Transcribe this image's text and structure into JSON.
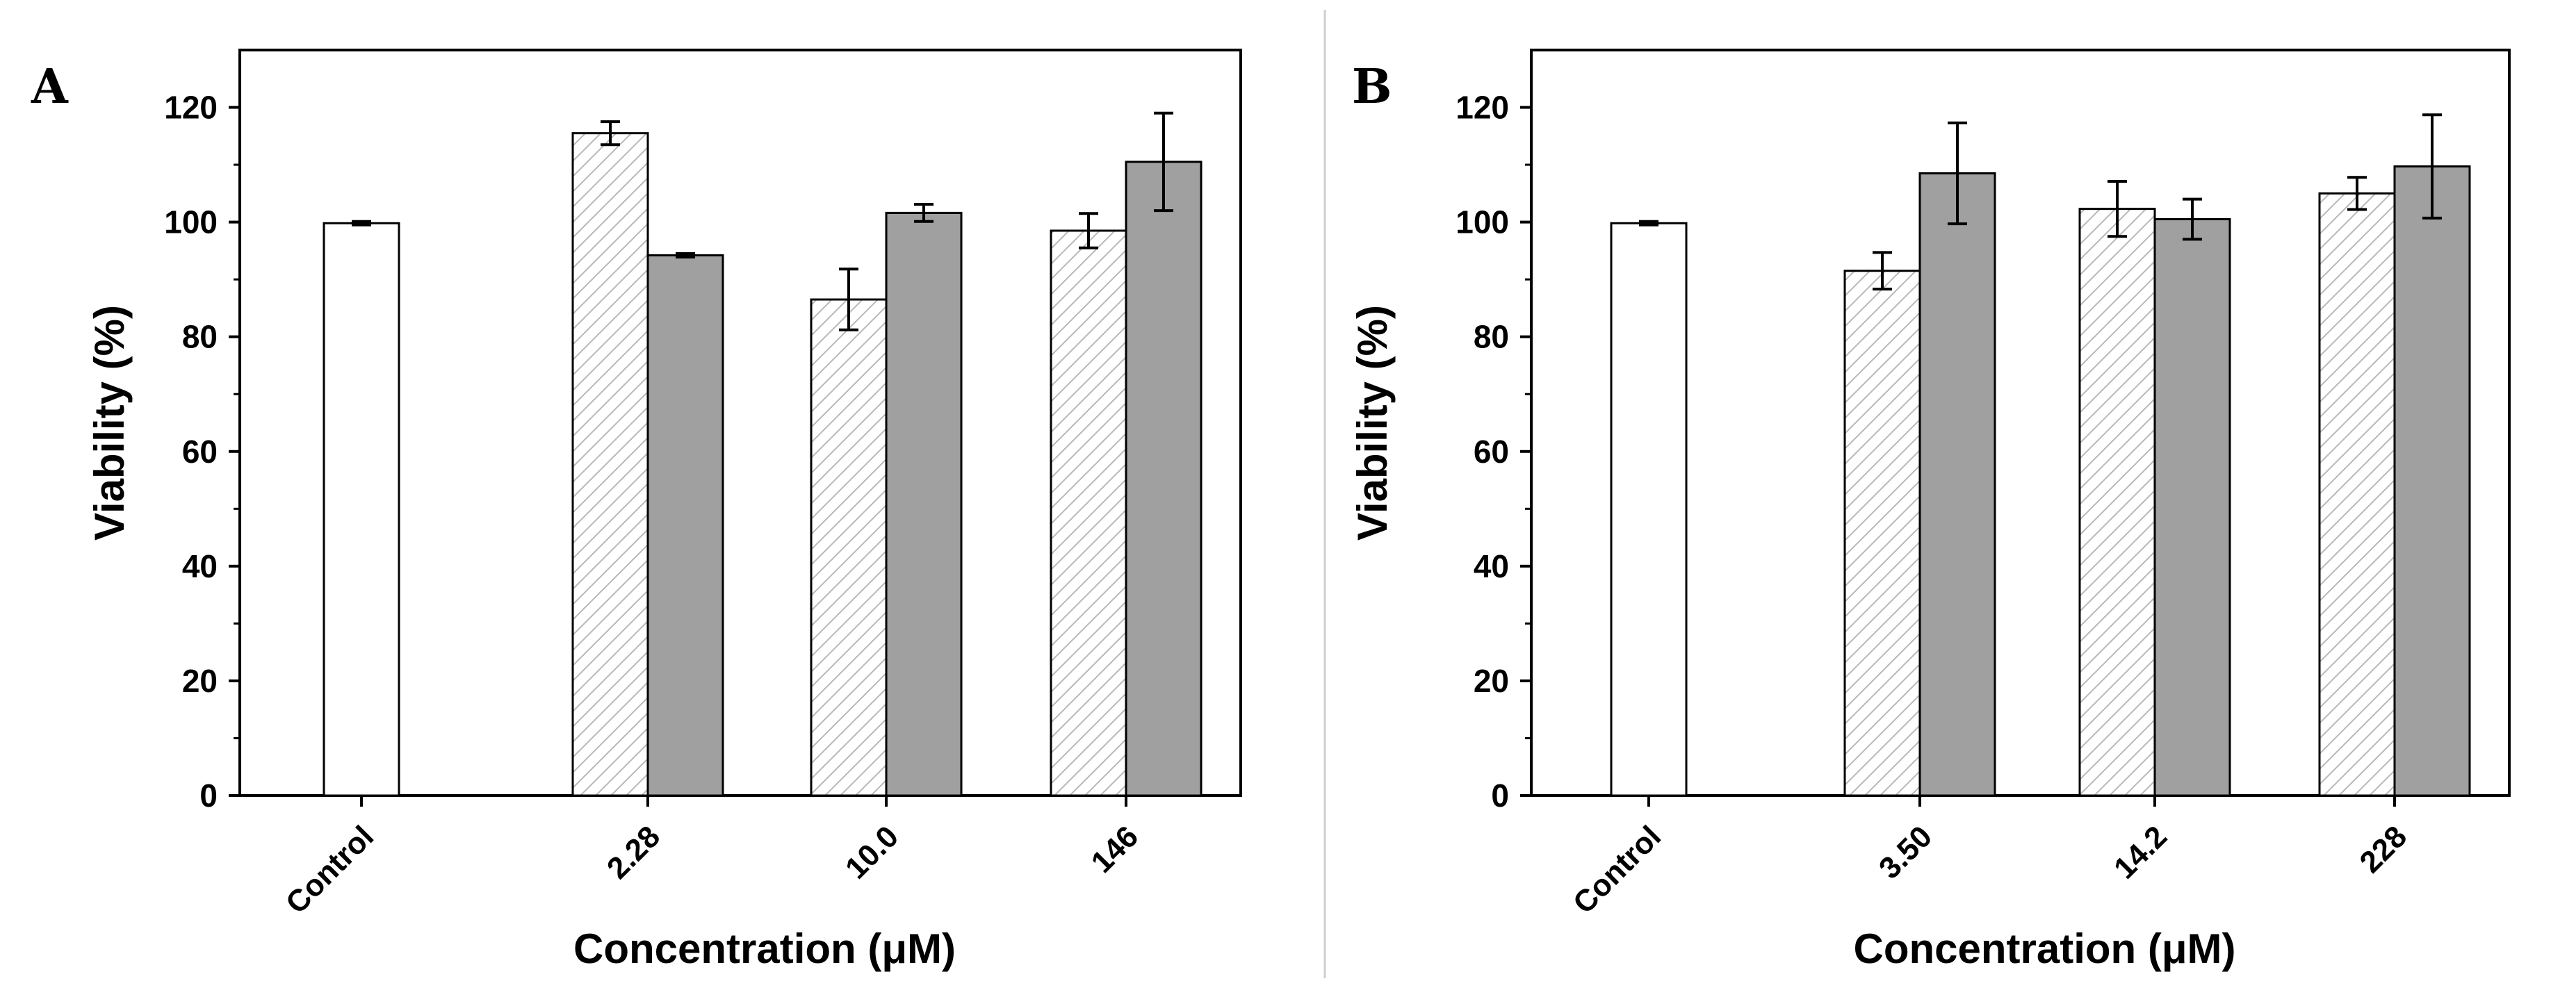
{
  "chart_data": [
    {
      "type": "bar",
      "panel": "A",
      "title": "",
      "xlabel": "Concentration (μM)",
      "ylabel": "Viability (%)",
      "ylim": [
        0,
        130
      ],
      "yticks": [
        0,
        20,
        40,
        60,
        80,
        100,
        120
      ],
      "grid": false,
      "categories": [
        "Control",
        "2.28",
        "10.0",
        "146"
      ],
      "control": {
        "value": 99.8,
        "error": 0.3
      },
      "series": [
        {
          "name": "hatched",
          "fill": "hatched",
          "values": [
            null,
            115.5,
            86.5,
            98.5
          ],
          "errors": [
            null,
            2.0,
            5.3,
            3.0
          ]
        },
        {
          "name": "gray",
          "fill": "#a0a0a0",
          "values": [
            null,
            94.2,
            101.6,
            110.5
          ],
          "errors": [
            null,
            0.3,
            1.5,
            8.5
          ]
        }
      ]
    },
    {
      "type": "bar",
      "panel": "B",
      "title": "",
      "xlabel": "Concentration (μM)",
      "ylabel": "Viability (%)",
      "ylim": [
        0,
        130
      ],
      "yticks": [
        0,
        20,
        40,
        60,
        80,
        100,
        120
      ],
      "grid": false,
      "categories": [
        "Control",
        "3.50",
        "14.2",
        "228"
      ],
      "control": {
        "value": 99.8,
        "error": 0.3
      },
      "series": [
        {
          "name": "hatched",
          "fill": "hatched",
          "values": [
            null,
            91.5,
            102.3,
            105.0
          ],
          "errors": [
            null,
            3.2,
            4.8,
            2.8
          ]
        },
        {
          "name": "gray",
          "fill": "#a0a0a0",
          "values": [
            null,
            108.5,
            100.5,
            109.7
          ],
          "errors": [
            null,
            8.8,
            3.5,
            9.0
          ]
        }
      ]
    }
  ],
  "colors": {
    "gray_bar": "#a0a0a0",
    "hatch": "#b8b8b8",
    "axis": "#000000",
    "divider": "#cfcfcf"
  }
}
